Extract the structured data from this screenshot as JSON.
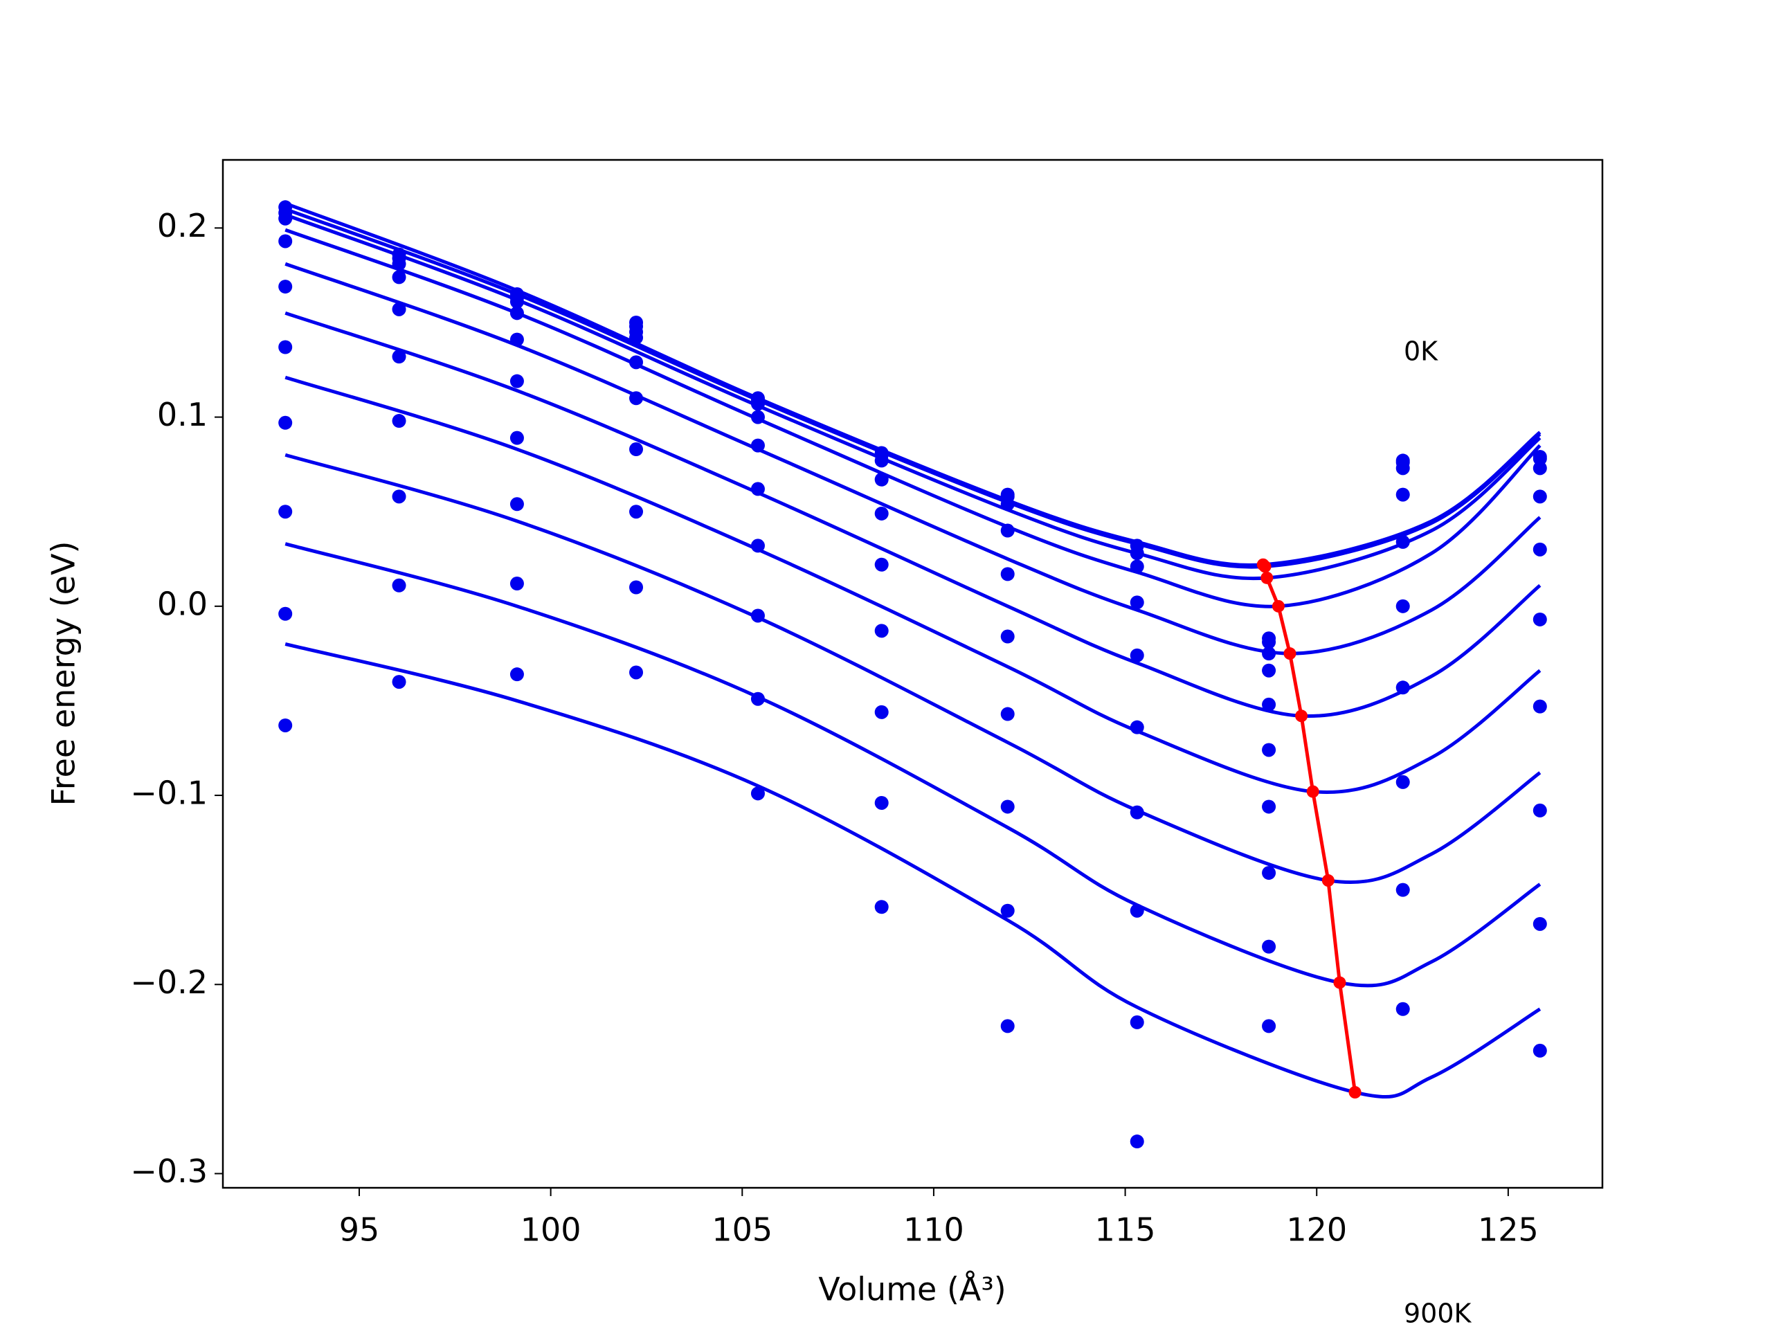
{
  "chart_data": {
    "type": "scatter",
    "xlabel": "Volume (Å³)",
    "ylabel": "Free energy (eV)",
    "annotations": [
      "0K",
      "900K"
    ],
    "xlim": [
      91.44,
      127.46
    ],
    "ylim": [
      -0.3075,
      0.236
    ],
    "xticks": [
      95,
      100,
      105,
      110,
      115,
      120,
      125
    ],
    "yticks": [
      {
        "value": -0.3,
        "label": "−0.3"
      },
      {
        "value": -0.2,
        "label": "−0.2"
      },
      {
        "value": -0.1,
        "label": "−0.1"
      },
      {
        "value": 0,
        "label": "0.0"
      },
      0.1,
      0.2
    ],
    "color": "#0000ee",
    "points": {
      "x": [
        93.07,
        96.04,
        99.12,
        102.23,
        105.41,
        108.64,
        111.93,
        115.31,
        118.75,
        122.25,
        125.83
      ],
      "series": [
        [
          0.211,
          0.186,
          0.165,
          0.15,
          0.11,
          0.081,
          0.059,
          0.032,
          -0.017,
          0.077,
          0.079
        ],
        [
          0.208,
          0.184,
          0.163,
          0.148,
          0.109,
          0.08,
          0.058,
          0.028,
          -0.019,
          0.076,
          0.078
        ],
        [
          0.205,
          0.181,
          0.161,
          0.145,
          0.107,
          0.077,
          0.054,
          0.021,
          -0.025,
          0.073,
          0.073
        ],
        [
          0.193,
          0.174,
          0.155,
          0.142,
          0.1,
          0.067,
          0.04,
          0.002,
          -0.034,
          0.059,
          0.058
        ],
        [
          0.169,
          0.157,
          0.141,
          0.129,
          0.085,
          0.049,
          0.017,
          -0.026,
          -0.052,
          0.034,
          0.03
        ],
        [
          0.137,
          0.132,
          0.119,
          0.11,
          0.062,
          0.022,
          -0.016,
          -0.064,
          -0.076,
          0.0,
          -0.007
        ],
        [
          0.097,
          0.098,
          0.089,
          0.083,
          0.032,
          -0.013,
          -0.057,
          -0.109,
          -0.106,
          -0.043,
          -0.053
        ],
        [
          0.05,
          0.058,
          0.054,
          0.05,
          -0.005,
          -0.056,
          -0.106,
          -0.161,
          -0.141,
          -0.093,
          -0.108
        ],
        [
          -0.004,
          0.011,
          0.012,
          0.01,
          -0.049,
          -0.104,
          -0.161,
          -0.22,
          -0.18,
          -0.15,
          -0.168
        ],
        [
          -0.063,
          -0.04,
          -0.036,
          -0.035,
          -0.099,
          -0.159,
          -0.222,
          -0.283,
          -0.222,
          -0.213,
          -0.235
        ]
      ]
    },
    "fits": [
      {
        "x": [
          93.07,
          99.12,
          105.41,
          111.93,
          115.31,
          118.6,
          123.0,
          125.83
        ],
        "values": [
          0.213,
          0.167,
          0.11,
          0.056,
          0.034,
          0.022,
          0.045,
          0.092
        ]
      },
      {
        "x": [
          93.07,
          99.12,
          105.41,
          111.93,
          115.31,
          118.65,
          123.0,
          125.83
        ],
        "values": [
          0.21,
          0.165,
          0.109,
          0.055,
          0.033,
          0.021,
          0.044,
          0.091
        ]
      },
      {
        "x": [
          93.07,
          99.12,
          105.41,
          111.93,
          115.31,
          118.7,
          123.0,
          125.83
        ],
        "values": [
          0.207,
          0.162,
          0.106,
          0.051,
          0.028,
          0.015,
          0.04,
          0.089
        ]
      },
      {
        "x": [
          93.07,
          99.12,
          105.41,
          111.93,
          115.31,
          119.0,
          123.0,
          125.83
        ],
        "values": [
          0.199,
          0.155,
          0.099,
          0.042,
          0.018,
          0.0,
          0.028,
          0.085
        ]
      },
      {
        "x": [
          93.07,
          99.12,
          105.41,
          111.93,
          115.31,
          119.3,
          123.0,
          125.83
        ],
        "values": [
          0.181,
          0.138,
          0.083,
          0.025,
          -0.002,
          -0.025,
          -0.002,
          0.047
        ]
      },
      {
        "x": [
          93.07,
          99.12,
          105.41,
          111.93,
          115.31,
          119.6,
          123.0,
          125.83
        ],
        "values": [
          0.155,
          0.114,
          0.06,
          0.0,
          -0.03,
          -0.058,
          -0.037,
          0.011
        ]
      },
      {
        "x": [
          93.07,
          99.12,
          105.41,
          111.93,
          115.31,
          119.9,
          123.0,
          125.83
        ],
        "values": [
          0.121,
          0.083,
          0.03,
          -0.032,
          -0.066,
          -0.098,
          -0.08,
          -0.034
        ]
      },
      {
        "x": [
          93.07,
          99.12,
          105.41,
          111.93,
          115.31,
          120.3,
          123.0,
          125.83
        ],
        "values": [
          0.08,
          0.045,
          -0.006,
          -0.072,
          -0.108,
          -0.145,
          -0.131,
          -0.088
        ]
      },
      {
        "x": [
          93.07,
          99.12,
          105.41,
          111.93,
          115.31,
          120.6,
          123.0,
          125.83
        ],
        "values": [
          0.033,
          0.0,
          -0.048,
          -0.117,
          -0.158,
          -0.199,
          -0.188,
          -0.147
        ]
      },
      {
        "x": [
          93.07,
          99.12,
          105.41,
          111.93,
          115.31,
          121.0,
          123.0,
          125.83
        ],
        "values": [
          -0.02,
          -0.05,
          -0.095,
          -0.166,
          -0.212,
          -0.257,
          -0.249,
          -0.213
        ]
      }
    ],
    "minima": {
      "color": "#ff0000",
      "x": [
        118.6,
        118.65,
        118.7,
        119.0,
        119.3,
        119.6,
        119.9,
        120.3,
        120.6,
        121.0
      ],
      "values": [
        0.022,
        0.021,
        0.015,
        0.0,
        -0.025,
        -0.058,
        -0.098,
        -0.145,
        -0.199,
        -0.257
      ]
    }
  }
}
